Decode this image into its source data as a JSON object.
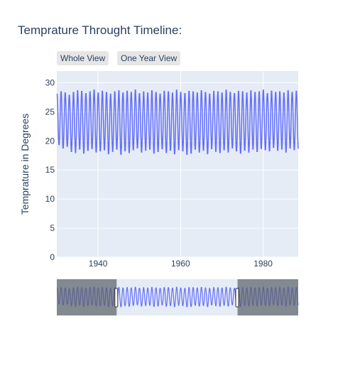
{
  "title": "Temprature Throught Timeline:",
  "buttons": [
    {
      "label": "Whole View"
    },
    {
      "label": "One Year View"
    }
  ],
  "colors": {
    "line": "#636efa",
    "plot_bg": "#e5ecf6",
    "grid": "#ffffff",
    "range_mask": "#5a5f66"
  },
  "chart_data": {
    "type": "line",
    "title": "Temprature Throught Timeline:",
    "ylabel": "Temprature in Degrees",
    "xlabel": "",
    "xlim": [
      1930,
      1988.5
    ],
    "ylim": [
      0,
      32
    ],
    "xticks": [
      "1940",
      "1960",
      "1980"
    ],
    "xtick_values": [
      1940,
      1960,
      1980
    ],
    "yticks": [
      "0",
      "5",
      "10",
      "15",
      "20",
      "25",
      "30"
    ],
    "ytick_values": [
      0,
      5,
      10,
      15,
      20,
      25,
      30
    ],
    "grid": true,
    "series": [
      {
        "x_start": 1930,
        "points_per_year": 12,
        "annual_max": [
          28.2,
          28.6,
          28.4,
          28.0,
          28.5,
          28.8,
          28.7,
          28.3,
          28.6,
          28.9,
          28.4,
          28.7,
          28.5,
          28.2,
          28.6,
          28.8,
          28.4,
          28.7,
          28.5,
          28.9,
          28.3,
          28.6,
          28.4,
          28.8,
          28.5,
          28.2,
          28.7,
          28.6,
          28.4,
          28.9,
          28.5,
          28.3,
          28.7,
          28.6,
          28.4,
          28.8,
          28.5,
          28.2,
          28.7,
          28.6,
          28.4,
          28.9,
          28.5,
          28.3,
          28.7,
          28.6,
          28.4,
          28.8,
          28.5,
          28.6,
          28.9,
          28.3,
          28.7,
          28.5,
          28.6,
          28.4,
          28.8,
          28.5,
          28.7
        ],
        "annual_min": [
          19.2,
          18.6,
          18.9,
          18.0,
          17.8,
          18.4,
          17.7,
          18.2,
          18.5,
          17.9,
          18.1,
          18.3,
          17.6,
          18.0,
          18.4,
          17.5,
          18.1,
          17.8,
          18.3,
          18.6,
          17.9,
          18.2,
          18.4,
          17.7,
          18.0,
          18.5,
          17.8,
          18.2,
          17.6,
          18.3,
          18.1,
          17.5,
          17.7,
          18.4,
          17.9,
          18.2,
          17.6,
          18.5,
          18.0,
          17.8,
          18.3,
          17.9,
          18.6,
          18.1,
          17.7,
          18.2,
          17.9,
          18.4,
          18.0,
          18.5,
          18.3,
          18.1,
          18.7,
          18.2,
          18.4,
          17.9,
          18.6,
          18.3,
          18.5
        ]
      }
    ],
    "rangeslider": {
      "visible": true,
      "selected_range": [
        1944.5,
        1973.8
      ]
    }
  }
}
